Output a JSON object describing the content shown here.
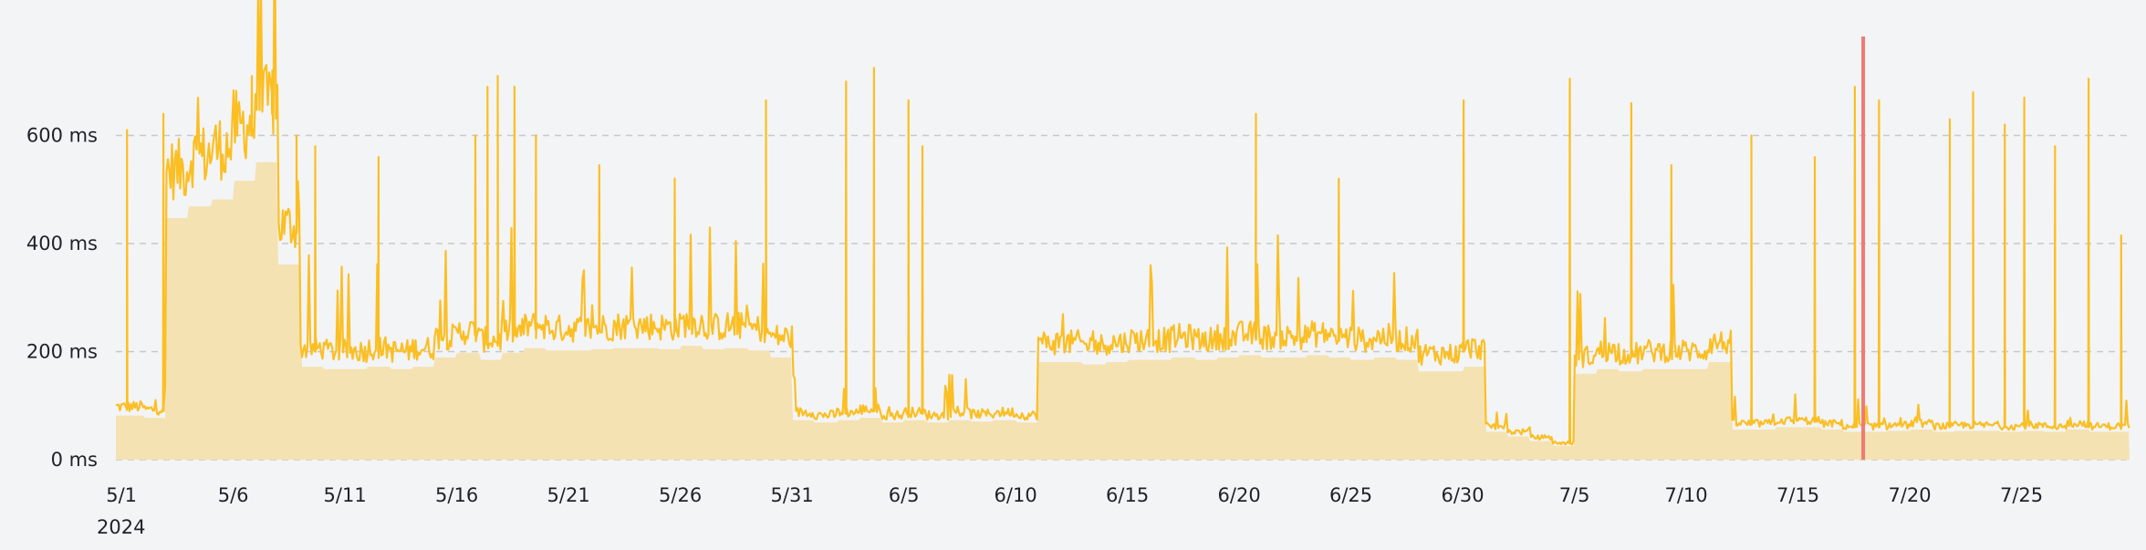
{
  "colors": {
    "background": "#f3f4f6",
    "line": "#fbbf24",
    "area": "#f5e2b2",
    "grid": "#c8c8c8",
    "marker": "#f07a72",
    "text": "#1f2328"
  },
  "chart_data": {
    "type": "area",
    "title": "",
    "xlabel": "",
    "ylabel": "",
    "ylim": [
      0,
      800
    ],
    "y_ticks": [
      {
        "value": 0,
        "label": "0 ms"
      },
      {
        "value": 200,
        "label": "200 ms"
      },
      {
        "value": 400,
        "label": "400 ms"
      },
      {
        "value": 600,
        "label": "600 ms"
      }
    ],
    "x_range": [
      "2024-04-30T18:00",
      "2024-07-29T20:00"
    ],
    "x_ticks": [
      {
        "date": "2024-05-01",
        "label": "5/1"
      },
      {
        "date": "2024-05-06",
        "label": "5/6"
      },
      {
        "date": "2024-05-11",
        "label": "5/11"
      },
      {
        "date": "2024-05-16",
        "label": "5/16"
      },
      {
        "date": "2024-05-21",
        "label": "5/21"
      },
      {
        "date": "2024-05-26",
        "label": "5/26"
      },
      {
        "date": "2024-05-31",
        "label": "5/31"
      },
      {
        "date": "2024-06-05",
        "label": "6/5"
      },
      {
        "date": "2024-06-10",
        "label": "6/10"
      },
      {
        "date": "2024-06-15",
        "label": "6/15"
      },
      {
        "date": "2024-06-20",
        "label": "6/20"
      },
      {
        "date": "2024-06-25",
        "label": "6/25"
      },
      {
        "date": "2024-06-30",
        "label": "6/30"
      },
      {
        "date": "2024-07-05",
        "label": "7/5"
      },
      {
        "date": "2024-07-10",
        "label": "7/10"
      },
      {
        "date": "2024-07-15",
        "label": "7/15"
      },
      {
        "date": "2024-07-20",
        "label": "7/20"
      },
      {
        "date": "2024-07-25",
        "label": "7/25"
      }
    ],
    "year_label": "2024",
    "grid": true,
    "marker_date": "2024-07-17T22:00",
    "series": [
      {
        "x": [
          "2024-05-01",
          "2024-05-02",
          "2024-05-03",
          "2024-05-04",
          "2024-05-05",
          "2024-05-06",
          "2024-05-07",
          "2024-05-08",
          "2024-05-09",
          "2024-05-10",
          "2024-05-11",
          "2024-05-12",
          "2024-05-13",
          "2024-05-14",
          "2024-05-15",
          "2024-05-16",
          "2024-05-17",
          "2024-05-18",
          "2024-05-19",
          "2024-05-20",
          "2024-05-21",
          "2024-05-22",
          "2024-05-23",
          "2024-05-24",
          "2024-05-25",
          "2024-05-26",
          "2024-05-27",
          "2024-05-28",
          "2024-05-29",
          "2024-05-30",
          "2024-05-31",
          "2024-06-01",
          "2024-06-02",
          "2024-06-03",
          "2024-06-04",
          "2024-06-05",
          "2024-06-06",
          "2024-06-07",
          "2024-06-08",
          "2024-06-09",
          "2024-06-10",
          "2024-06-11",
          "2024-06-12",
          "2024-06-13",
          "2024-06-14",
          "2024-06-15",
          "2024-06-16",
          "2024-06-17",
          "2024-06-18",
          "2024-06-19",
          "2024-06-20",
          "2024-06-21",
          "2024-06-22",
          "2024-06-23",
          "2024-06-24",
          "2024-06-25",
          "2024-06-26",
          "2024-06-27",
          "2024-06-28",
          "2024-06-29",
          "2024-06-30",
          "2024-07-01",
          "2024-07-02",
          "2024-07-03",
          "2024-07-04",
          "2024-07-05",
          "2024-07-06",
          "2024-07-07",
          "2024-07-08",
          "2024-07-09",
          "2024-07-10",
          "2024-07-11",
          "2024-07-12",
          "2024-07-13",
          "2024-07-14",
          "2024-07-15",
          "2024-07-16",
          "2024-07-17",
          "2024-07-18",
          "2024-07-19",
          "2024-07-20",
          "2024-07-21",
          "2024-07-22",
          "2024-07-23",
          "2024-07-24",
          "2024-07-25",
          "2024-07-26",
          "2024-07-27",
          "2024-07-28",
          "2024-07-29"
        ],
        "values": [
          95,
          90,
          520,
          545,
          560,
          600,
          640,
          420,
          200,
          195,
          195,
          200,
          195,
          200,
          220,
          230,
          215,
          230,
          240,
          235,
          235,
          238,
          240,
          240,
          238,
          245,
          238,
          240,
          235,
          220,
          85,
          80,
          85,
          90,
          80,
          85,
          80,
          85,
          82,
          85,
          80,
          210,
          210,
          205,
          210,
          215,
          215,
          220,
          215,
          220,
          225,
          220,
          220,
          225,
          220,
          215,
          220,
          215,
          190,
          190,
          200,
          60,
          50,
          40,
          30,
          185,
          195,
          190,
          195,
          195,
          195,
          210,
          65,
          65,
          70,
          70,
          65,
          60,
          60,
          62,
          65,
          60,
          62,
          62,
          60,
          62,
          60,
          65,
          60,
          60
        ],
        "peaks": [
          {
            "x": "2024-05-01T06:00",
            "y": 610
          },
          {
            "x": "2024-05-02T21:00",
            "y": 640
          },
          {
            "x": "2024-05-06T04:00",
            "y": 640
          },
          {
            "x": "2024-05-06T20:00",
            "y": 710
          },
          {
            "x": "2024-05-07T18:00",
            "y": 720
          },
          {
            "x": "2024-05-08T20:00",
            "y": 600
          },
          {
            "x": "2024-05-09T16:00",
            "y": 580
          },
          {
            "x": "2024-05-12T12:00",
            "y": 560
          },
          {
            "x": "2024-05-16T20:00",
            "y": 600
          },
          {
            "x": "2024-05-17T09:00",
            "y": 690
          },
          {
            "x": "2024-05-17T20:00",
            "y": 710
          },
          {
            "x": "2024-05-18T14:00",
            "y": 690
          },
          {
            "x": "2024-05-19T13:00",
            "y": 600
          },
          {
            "x": "2024-05-22T09:00",
            "y": 545
          },
          {
            "x": "2024-05-25T18:00",
            "y": 520
          },
          {
            "x": "2024-05-29T20:00",
            "y": 665
          },
          {
            "x": "2024-06-02T10:00",
            "y": 700
          },
          {
            "x": "2024-06-03T16:00",
            "y": 725
          },
          {
            "x": "2024-06-05T05:00",
            "y": 665
          },
          {
            "x": "2024-06-05T20:00",
            "y": 580
          },
          {
            "x": "2024-06-20T18:00",
            "y": 640
          },
          {
            "x": "2024-06-24T11:00",
            "y": 520
          },
          {
            "x": "2024-06-30T01:00",
            "y": 665
          },
          {
            "x": "2024-07-04T19:00",
            "y": 705
          },
          {
            "x": "2024-07-07T13:00",
            "y": 660
          },
          {
            "x": "2024-07-09T08:00",
            "y": 545
          },
          {
            "x": "2024-07-12T22:00",
            "y": 600
          },
          {
            "x": "2024-07-15T18:00",
            "y": 560
          },
          {
            "x": "2024-07-17T13:00",
            "y": 690
          },
          {
            "x": "2024-07-18T15:00",
            "y": 665
          },
          {
            "x": "2024-07-21T19:00",
            "y": 630
          },
          {
            "x": "2024-07-22T20:00",
            "y": 680
          },
          {
            "x": "2024-07-24T06:00",
            "y": 620
          },
          {
            "x": "2024-07-25T03:00",
            "y": 670
          },
          {
            "x": "2024-07-26T12:00",
            "y": 580
          },
          {
            "x": "2024-07-28T00:00",
            "y": 705
          },
          {
            "x": "2024-07-29T11:00",
            "y": 415
          }
        ]
      }
    ]
  }
}
